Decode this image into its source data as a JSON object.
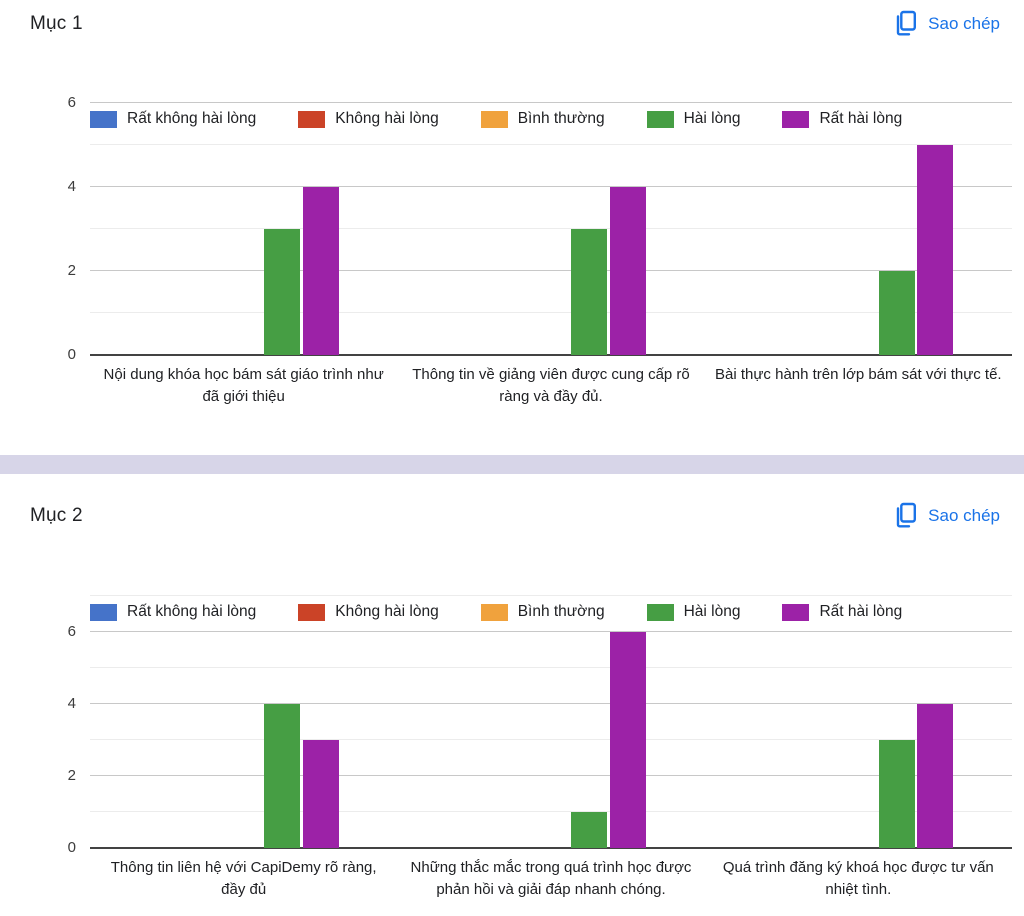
{
  "page": {
    "background": "#ffffff",
    "divider_color": "#d7d5e8",
    "accent_blue": "#1a73e8"
  },
  "sections": [
    {
      "title": "Mục 1",
      "copy_label": "Sao chép"
    },
    {
      "title": "Mục 2",
      "copy_label": "Sao chép"
    }
  ],
  "chart_data": [
    {
      "type": "bar",
      "title": "Mục 1",
      "categories": [
        "Nội dung khóa học bám sát giáo trình như đã giới thiệu",
        "Thông tin về giảng viên được cung cấp rõ ràng và đầy đủ.",
        "Bài thực hành trên lớp bám sát với thực tế."
      ],
      "series": [
        {
          "name": "Rất không hài lòng",
          "color": "#4573c9",
          "values": [
            0,
            0,
            0
          ]
        },
        {
          "name": "Không hài lòng",
          "color": "#cb4327",
          "values": [
            0,
            0,
            0
          ]
        },
        {
          "name": "Bình thường",
          "color": "#f0a23d",
          "values": [
            0,
            0,
            0
          ]
        },
        {
          "name": "Hài lòng",
          "color": "#469e44",
          "values": [
            3,
            3,
            2
          ]
        },
        {
          "name": "Rất hài lòng",
          "color": "#9c22a7",
          "values": [
            4,
            4,
            5
          ]
        }
      ],
      "yticks": [
        0,
        2,
        4,
        6
      ],
      "ylim": [
        0,
        6
      ],
      "grid": true,
      "legend_position": "top"
    },
    {
      "type": "bar",
      "title": "Mục 2",
      "categories": [
        "Thông tin liên hệ với CapiDemy rõ ràng, đầy đủ",
        "Những thắc mắc trong quá trình học được phản hồi và giải đáp nhanh chóng.",
        "Quá trình đăng ký khoá học được tư vấn nhiệt tình."
      ],
      "series": [
        {
          "name": "Rất không hài lòng",
          "color": "#4573c9",
          "values": [
            0,
            0,
            0
          ]
        },
        {
          "name": "Không hài lòng",
          "color": "#cb4327",
          "values": [
            0,
            0,
            0
          ]
        },
        {
          "name": "Bình thường",
          "color": "#f0a23d",
          "values": [
            0,
            0,
            0
          ]
        },
        {
          "name": "Hài lòng",
          "color": "#469e44",
          "values": [
            4,
            1,
            3
          ]
        },
        {
          "name": "Rất hài lòng",
          "color": "#9c22a7",
          "values": [
            3,
            6,
            4
          ]
        }
      ],
      "yticks": [
        0,
        2,
        4,
        6
      ],
      "ylim": [
        0,
        7
      ],
      "grid": true,
      "legend_position": "top"
    }
  ]
}
